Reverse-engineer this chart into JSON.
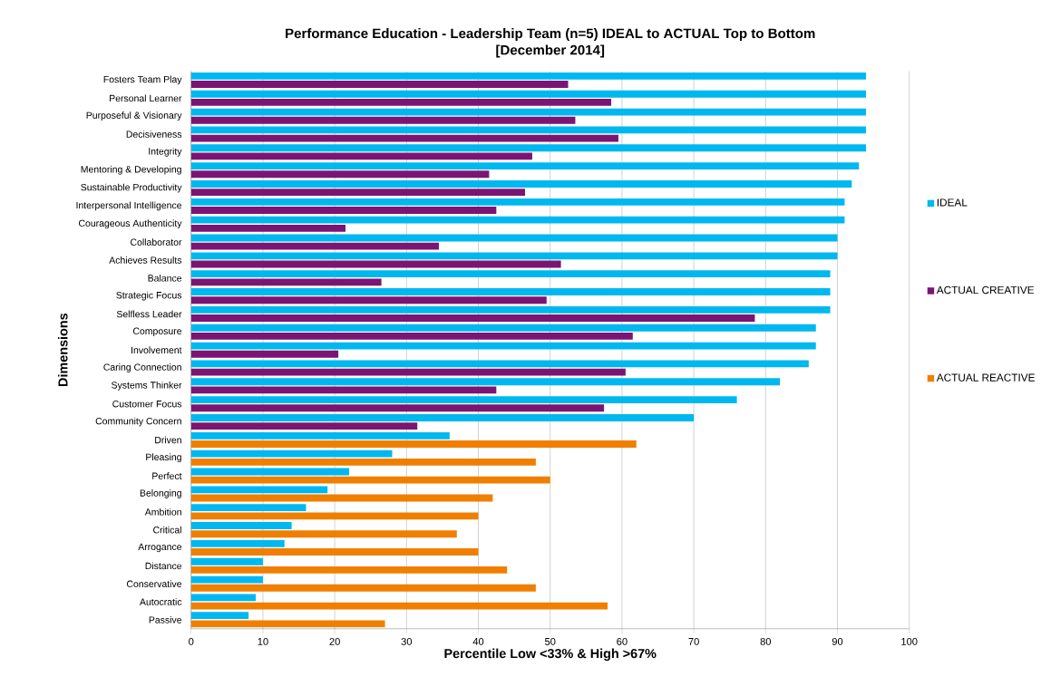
{
  "chart_data": {
    "type": "bar",
    "orientation": "horizontal",
    "title": "Performance Education - Leadership Team (n=5) IDEAL to ACTUAL Top to Bottom",
    "subtitle": "[December 2014]",
    "xlabel": "Percentile Low <33% & High >67%",
    "ylabel": "Dimensions",
    "categories": [
      "Fosters Team Play",
      "Personal Learner",
      "Purposeful & Visionary",
      "Decisiveness",
      "Integrity",
      "Mentoring & Developing",
      "Sustainable Productivity",
      "Interpersonal Intelligence",
      "Courageous Authenticity",
      "Collaborator",
      "Achieves Results",
      "Balance",
      "Strategic Focus",
      "Selfless Leader",
      "Composure",
      "Involvement",
      "Caring Connection",
      "Systems Thinker",
      "Customer Focus",
      "Community Concern",
      "Driven",
      "Pleasing",
      "Perfect",
      "Belonging",
      "Ambition",
      "Critical",
      "Arrogance",
      "Distance",
      "Conservative",
      "Autocratic",
      "Passive"
    ],
    "series": [
      {
        "name": "IDEAL",
        "color": "#00b8f0",
        "values": [
          94,
          94,
          94,
          94,
          94,
          93,
          92,
          91,
          91,
          90,
          90,
          89,
          89,
          89,
          87,
          87,
          86,
          82,
          76,
          70,
          36,
          28,
          22,
          19,
          16,
          14,
          13,
          10,
          10,
          9,
          8
        ]
      },
      {
        "name": "ACTUAL CREATIVE",
        "color": "#7b1574",
        "values": [
          52.5,
          58.5,
          53.5,
          59.5,
          47.5,
          41.5,
          46.5,
          42.5,
          21.5,
          34.5,
          51.5,
          26.5,
          49.5,
          78.5,
          61.5,
          20.5,
          60.5,
          42.5,
          57.5,
          31.5,
          null,
          null,
          null,
          null,
          null,
          null,
          null,
          null,
          null,
          null,
          null
        ]
      },
      {
        "name": "ACTUAL REACTIVE",
        "color": "#f07f00",
        "values": [
          null,
          null,
          null,
          null,
          null,
          null,
          null,
          null,
          null,
          null,
          null,
          null,
          null,
          null,
          null,
          null,
          null,
          null,
          null,
          null,
          62,
          48,
          50,
          42,
          40,
          37,
          40,
          44,
          48,
          58,
          27
        ]
      }
    ],
    "xlim": [
      0,
      100
    ],
    "xticks": [
      0,
      10,
      20,
      30,
      40,
      50,
      60,
      70,
      80,
      90,
      100
    ],
    "grid": "x",
    "legend": "right"
  }
}
